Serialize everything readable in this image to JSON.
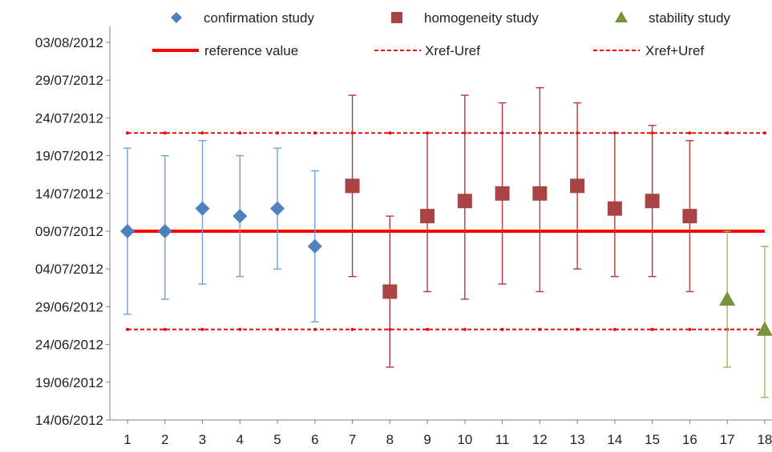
{
  "chart_data": {
    "type": "scatter",
    "title": "",
    "xlabel": "",
    "ylabel": "",
    "x_categories": [
      "1",
      "2",
      "3",
      "4",
      "5",
      "6",
      "7",
      "8",
      "9",
      "10",
      "11",
      "12",
      "13",
      "14",
      "15",
      "16",
      "17",
      "18"
    ],
    "y_axis": {
      "unit": "date",
      "ylim": [
        "2012-06-14",
        "2012-08-03"
      ],
      "tick_step_days": 5,
      "tick_labels": [
        "14/06/2012",
        "19/06/2012",
        "24/06/2012",
        "29/06/2012",
        "04/07/2012",
        "09/07/2012",
        "14/07/2012",
        "19/07/2012",
        "24/07/2012",
        "29/07/2012",
        "03/08/2012"
      ]
    },
    "grid": false,
    "legend_position": "top",
    "series": [
      {
        "name": "confirmation study",
        "marker": "diamond",
        "color": "#4f81bd",
        "error_color": "#6fa0d8",
        "points": [
          {
            "x": 1,
            "y": "2012-07-09",
            "low": "2012-06-28",
            "high": "2012-07-20"
          },
          {
            "x": 2,
            "y": "2012-07-09",
            "low": "2012-06-30",
            "high": "2012-07-19"
          },
          {
            "x": 3,
            "y": "2012-07-12",
            "low": "2012-07-02",
            "high": "2012-07-21"
          },
          {
            "x": 4,
            "y": "2012-07-11",
            "low": "2012-07-03",
            "high": "2012-07-19"
          },
          {
            "x": 5,
            "y": "2012-07-12",
            "low": "2012-07-04",
            "high": "2012-07-20"
          },
          {
            "x": 6,
            "y": "2012-07-07",
            "low": "2012-06-27",
            "high": "2012-07-17"
          }
        ]
      },
      {
        "name": "homogeneity study",
        "marker": "square",
        "color": "#a84544",
        "error_color": "#b03a39",
        "points": [
          {
            "x": 7,
            "y": "2012-07-15",
            "low": "2012-07-03",
            "high": "2012-07-27"
          },
          {
            "x": 8,
            "y": "2012-07-01",
            "low": "2012-06-21",
            "high": "2012-07-11"
          },
          {
            "x": 9,
            "y": "2012-07-11",
            "low": "2012-07-01",
            "high": "2012-07-22"
          },
          {
            "x": 10,
            "y": "2012-07-13",
            "low": "2012-06-30",
            "high": "2012-07-27"
          },
          {
            "x": 11,
            "y": "2012-07-14",
            "low": "2012-07-02",
            "high": "2012-07-26"
          },
          {
            "x": 12,
            "y": "2012-07-14",
            "low": "2012-07-01",
            "high": "2012-07-28"
          },
          {
            "x": 13,
            "y": "2012-07-15",
            "low": "2012-07-04",
            "high": "2012-07-26"
          },
          {
            "x": 14,
            "y": "2012-07-12",
            "low": "2012-07-03",
            "high": "2012-07-22"
          },
          {
            "x": 15,
            "y": "2012-07-13",
            "low": "2012-07-03",
            "high": "2012-07-23"
          },
          {
            "x": 16,
            "y": "2012-07-11",
            "low": "2012-07-01",
            "high": "2012-07-21"
          }
        ]
      },
      {
        "name": "stability study",
        "marker": "triangle",
        "color": "#77933c",
        "error_color": "#9bbb59",
        "points": [
          {
            "x": 17,
            "y": "2012-06-30",
            "low": "2012-06-21",
            "high": "2012-07-09"
          },
          {
            "x": 18,
            "y": "2012-06-26",
            "low": "2012-06-17",
            "high": "2012-07-07"
          }
        ]
      }
    ],
    "reference_lines": [
      {
        "name": "reference value",
        "y": "2012-07-09",
        "style": "solid",
        "color": "#ff0000"
      },
      {
        "name": "Xref-Uref",
        "y": "2012-06-26",
        "style": "dashed",
        "color": "#ff0000"
      },
      {
        "name": "Xref+Uref",
        "y": "2012-07-22",
        "style": "dashed",
        "color": "#ff0000"
      }
    ]
  }
}
